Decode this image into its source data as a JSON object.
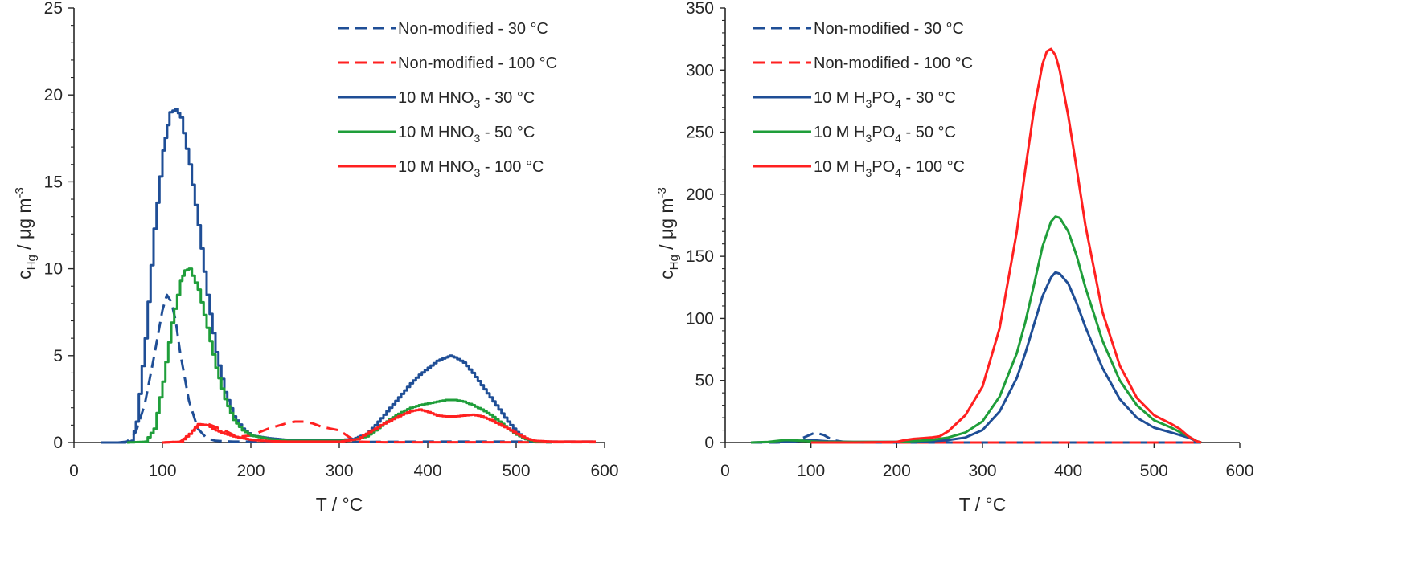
{
  "chart_data": [
    {
      "type": "line",
      "panel": "left",
      "xlabel": "T / °C",
      "ylabel": {
        "base": "c",
        "sub": "Hg",
        "mid": " / μg m",
        "sup": "-3"
      },
      "xlim": [
        0,
        600
      ],
      "ylim": [
        0,
        25
      ],
      "xticks": [
        0,
        100,
        200,
        300,
        400,
        500,
        600
      ],
      "yticks": [
        0,
        5,
        10,
        15,
        20,
        25
      ],
      "grid": false,
      "legend_position": "top-right",
      "series": [
        {
          "name": "Non-modified - 30 °C",
          "label_parts": [
            "Non-modified - 30 °C"
          ],
          "color": "#1f4e96",
          "dash": true,
          "step": false,
          "x": [
            30,
            50,
            60,
            70,
            80,
            90,
            100,
            105,
            110,
            115,
            120,
            130,
            140,
            150,
            160,
            180,
            200,
            300,
            400,
            500,
            590
          ],
          "y": [
            0,
            0,
            0.05,
            0.6,
            2.2,
            4.8,
            7.6,
            8.5,
            8.1,
            7.0,
            5.2,
            2.4,
            0.8,
            0.25,
            0.1,
            0.05,
            0.05,
            0.03,
            0.05,
            0.05,
            0.05
          ]
        },
        {
          "name": "Non-modified - 100 °C",
          "label_parts": [
            "Non-modified - 100 °C"
          ],
          "color": "#ff2020",
          "dash": true,
          "step": false,
          "x": [
            100,
            120,
            130,
            140,
            150,
            160,
            170,
            180,
            190,
            200,
            210,
            220,
            230,
            240,
            250,
            260,
            270,
            280,
            290,
            300,
            310,
            320,
            350,
            400,
            450,
            500,
            590
          ],
          "y": [
            0,
            0.05,
            0.4,
            1.0,
            1.1,
            0.9,
            0.7,
            0.45,
            0.35,
            0.4,
            0.6,
            0.8,
            0.95,
            1.1,
            1.2,
            1.2,
            1.1,
            0.9,
            0.8,
            0.7,
            0.35,
            0.05,
            0.02,
            0.02,
            0.02,
            0.02,
            0.02
          ]
        },
        {
          "name": "10 M HNO3 - 30 °C",
          "label_parts": [
            "10 M HNO",
            "3",
            " - 30 °C"
          ],
          "color": "#1f4e96",
          "dash": false,
          "step": true,
          "x": [
            40,
            55,
            65,
            70,
            80,
            90,
            100,
            108,
            115,
            120,
            130,
            140,
            150,
            160,
            170,
            180,
            190,
            200,
            220,
            240,
            260,
            280,
            300,
            315,
            330,
            340,
            350,
            360,
            370,
            380,
            390,
            400,
            410,
            420,
            425,
            430,
            440,
            450,
            460,
            470,
            480,
            490,
            500,
            510,
            520,
            540
          ],
          "y": [
            0,
            0,
            0.1,
            1.2,
            6.0,
            12.3,
            16.8,
            19.0,
            19.2,
            18.7,
            16.0,
            12.5,
            8.5,
            5.2,
            2.9,
            1.5,
            0.8,
            0.4,
            0.25,
            0.15,
            0.15,
            0.15,
            0.15,
            0.2,
            0.5,
            1.0,
            1.6,
            2.2,
            2.8,
            3.4,
            3.9,
            4.3,
            4.7,
            4.9,
            5.0,
            4.9,
            4.6,
            4.0,
            3.3,
            2.6,
            1.9,
            1.2,
            0.6,
            0.2,
            0.05,
            0
          ]
        },
        {
          "name": "10 M HNO3 - 50 °C",
          "label_parts": [
            "10 M HNO",
            "3",
            " - 50 °C"
          ],
          "color": "#1f9e3a",
          "dash": false,
          "step": true,
          "x": [
            60,
            80,
            90,
            100,
            110,
            120,
            125,
            130,
            140,
            150,
            160,
            170,
            180,
            190,
            200,
            220,
            240,
            260,
            280,
            300,
            315,
            330,
            340,
            350,
            360,
            370,
            380,
            390,
            400,
            410,
            420,
            430,
            440,
            450,
            460,
            470,
            480,
            490,
            500,
            510,
            520,
            540
          ],
          "y": [
            0,
            0.05,
            0.8,
            3.5,
            6.9,
            9.3,
            9.9,
            10.0,
            8.8,
            6.6,
            4.3,
            2.5,
            1.3,
            0.7,
            0.4,
            0.2,
            0.1,
            0.1,
            0.1,
            0.1,
            0.15,
            0.35,
            0.7,
            1.1,
            1.45,
            1.75,
            2.0,
            2.15,
            2.25,
            2.35,
            2.45,
            2.45,
            2.35,
            2.15,
            1.9,
            1.6,
            1.2,
            0.8,
            0.45,
            0.2,
            0.05,
            0
          ]
        },
        {
          "name": "10 M HNO3 - 100 °C",
          "label_parts": [
            "10 M HNO",
            "3",
            " - 100 °C"
          ],
          "color": "#ff2020",
          "dash": false,
          "step": true,
          "x": [
            100,
            120,
            130,
            140,
            150,
            160,
            170,
            180,
            200,
            220,
            240,
            260,
            280,
            300,
            320,
            330,
            340,
            350,
            360,
            370,
            380,
            390,
            400,
            410,
            420,
            430,
            440,
            450,
            460,
            470,
            480,
            490,
            500,
            510,
            520,
            540,
            560,
            590
          ],
          "y": [
            0,
            0.05,
            0.5,
            1.05,
            1.0,
            0.7,
            0.5,
            0.35,
            0.15,
            0.08,
            0.05,
            0.05,
            0.05,
            0.05,
            0.2,
            0.5,
            0.8,
            1.1,
            1.35,
            1.6,
            1.8,
            1.9,
            1.75,
            1.55,
            1.5,
            1.5,
            1.55,
            1.6,
            1.5,
            1.3,
            1.05,
            0.8,
            0.5,
            0.25,
            0.1,
            0.05,
            0.05,
            0.05
          ]
        }
      ]
    },
    {
      "type": "line",
      "panel": "right",
      "xlabel": "T / °C",
      "ylabel": {
        "base": "c",
        "sub": "Hg",
        "mid": " / μg m",
        "sup": "-3"
      },
      "xlim": [
        0,
        600
      ],
      "ylim": [
        0,
        350
      ],
      "xticks": [
        0,
        100,
        200,
        300,
        400,
        500,
        600
      ],
      "yticks": [
        0,
        50,
        100,
        150,
        200,
        250,
        300,
        350
      ],
      "grid": false,
      "legend_position": "top-left",
      "series": [
        {
          "name": "Non-modified - 30 °C",
          "label_parts": [
            "Non-modified - 30 °C"
          ],
          "color": "#1f4e96",
          "dash": true,
          "step": false,
          "x": [
            30,
            60,
            80,
            95,
            105,
            115,
            125,
            140,
            160,
            200,
            300,
            400,
            500,
            555
          ],
          "y": [
            0,
            0,
            0.5,
            5,
            8,
            6,
            2,
            0.3,
            0,
            0,
            0,
            0,
            0,
            0
          ]
        },
        {
          "name": "Non-modified - 100 °C",
          "label_parts": [
            "Non-modified - 100 °C"
          ],
          "color": "#ff2020",
          "dash": true,
          "step": false,
          "x": [
            100,
            150,
            200,
            250,
            300,
            350,
            400,
            450,
            500,
            555
          ],
          "y": [
            0,
            0,
            0,
            0,
            0,
            0,
            0,
            0,
            0,
            0
          ]
        },
        {
          "name": "10 M H3PO4 - 30 °C",
          "label_parts": [
            "10 M H",
            "3",
            "PO",
            "4",
            " - 30 °C"
          ],
          "color": "#1f4e96",
          "dash": false,
          "step": false,
          "x": [
            30,
            60,
            80,
            100,
            120,
            150,
            200,
            240,
            260,
            280,
            300,
            320,
            340,
            350,
            360,
            370,
            380,
            385,
            390,
            400,
            410,
            420,
            440,
            460,
            480,
            500,
            520,
            540,
            550,
            555
          ],
          "y": [
            0,
            0.5,
            1,
            2,
            1,
            0.5,
            0.5,
            1,
            2,
            4,
            10,
            25,
            52,
            72,
            95,
            118,
            133,
            137,
            136,
            128,
            112,
            93,
            60,
            35,
            20,
            12,
            8,
            4,
            1,
            0
          ]
        },
        {
          "name": "10 M H3PO4 - 50 °C",
          "label_parts": [
            "10 M H",
            "3",
            "PO",
            "4",
            " - 50 °C"
          ],
          "color": "#1f9e3a",
          "dash": false,
          "step": false,
          "x": [
            30,
            50,
            70,
            90,
            110,
            140,
            200,
            240,
            260,
            280,
            300,
            320,
            340,
            350,
            360,
            370,
            380,
            385,
            390,
            400,
            410,
            420,
            440,
            460,
            480,
            500,
            520,
            540,
            550,
            555
          ],
          "y": [
            0,
            0.5,
            2,
            1.5,
            0.5,
            0.5,
            0.5,
            2,
            4,
            8,
            17,
            37,
            72,
            97,
            127,
            158,
            178,
            182,
            181,
            170,
            150,
            125,
            82,
            50,
            30,
            18,
            12,
            5,
            1,
            0
          ]
        },
        {
          "name": "10 M H3PO4 - 100 °C",
          "label_parts": [
            "10 M H",
            "3",
            "PO",
            "4",
            " - 100 °C"
          ],
          "color": "#ff2020",
          "dash": false,
          "step": false,
          "x": [
            100,
            150,
            200,
            210,
            220,
            230,
            240,
            250,
            260,
            280,
            300,
            320,
            340,
            350,
            360,
            370,
            375,
            380,
            385,
            390,
            400,
            410,
            420,
            440,
            460,
            480,
            500,
            520,
            530,
            540,
            550,
            555
          ],
          "y": [
            0,
            0,
            0.5,
            2,
            3,
            3.5,
            4,
            5,
            9,
            22,
            45,
            92,
            170,
            220,
            268,
            305,
            315,
            317,
            312,
            300,
            263,
            220,
            175,
            105,
            62,
            36,
            22,
            15,
            11,
            5,
            1,
            0
          ]
        }
      ]
    }
  ]
}
